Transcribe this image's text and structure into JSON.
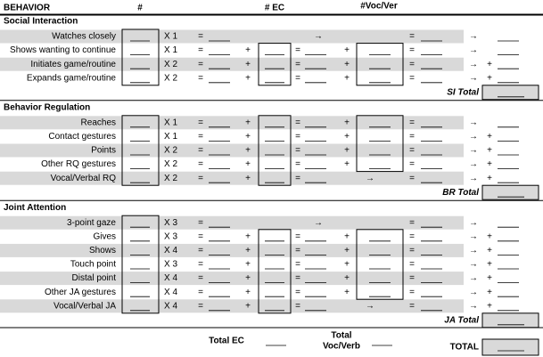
{
  "header": {
    "behavior": "BEHAVIOR",
    "count": "#",
    "ec": "# EC",
    "voc": "#Voc/Ver"
  },
  "symbols": {
    "equals": "=",
    "plus": "+",
    "arrow": "→"
  },
  "sections": [
    {
      "title": "Social Interaction",
      "total_label": "SI Total",
      "rows": [
        {
          "label": "Watches closely",
          "multiplier": "X 1",
          "kind": "simple",
          "sum_plus": false
        },
        {
          "label": "Shows wanting to continue",
          "multiplier": "X 1",
          "kind": "full",
          "sum_plus": false
        },
        {
          "label": "Initiates game/routine",
          "multiplier": "X 2",
          "kind": "full",
          "sum_plus": true
        },
        {
          "label": "Expands game/routine",
          "multiplier": "X 2",
          "kind": "full",
          "sum_plus": true
        }
      ]
    },
    {
      "title": "Behavior Regulation",
      "total_label": "BR Total",
      "rows": [
        {
          "label": "Reaches",
          "multiplier": "X 1",
          "kind": "full",
          "sum_plus": false
        },
        {
          "label": "Contact gestures",
          "multiplier": "X 1",
          "kind": "full",
          "sum_plus": true
        },
        {
          "label": "Points",
          "multiplier": "X 2",
          "kind": "full",
          "sum_plus": true
        },
        {
          "label": "Other RQ gestures",
          "multiplier": "X 2",
          "kind": "full",
          "sum_plus": true
        },
        {
          "label": "Vocal/Verbal RQ",
          "multiplier": "X 2",
          "kind": "vocal",
          "sum_plus": true
        }
      ]
    },
    {
      "title": "Joint Attention",
      "total_label": "JA Total",
      "rows": [
        {
          "label": "3-point gaze",
          "multiplier": "X 3",
          "kind": "simple",
          "sum_plus": false
        },
        {
          "label": "Gives",
          "multiplier": "X 3",
          "kind": "full",
          "sum_plus": true
        },
        {
          "label": "Shows",
          "multiplier": "X 4",
          "kind": "full",
          "sum_plus": true
        },
        {
          "label": "Touch point",
          "multiplier": "X 3",
          "kind": "full",
          "sum_plus": true
        },
        {
          "label": "Distal point",
          "multiplier": "X 4",
          "kind": "full",
          "sum_plus": true
        },
        {
          "label": "Other JA gestures",
          "multiplier": "X 4",
          "kind": "full",
          "sum_plus": true
        },
        {
          "label": "Vocal/Verbal JA",
          "multiplier": "X 4",
          "kind": "vocal",
          "sum_plus": true
        }
      ]
    }
  ],
  "footer": {
    "total_ec": "Total EC",
    "total_voc_lines": [
      "Total",
      "Voc/Verb"
    ],
    "total": "TOTAL"
  }
}
